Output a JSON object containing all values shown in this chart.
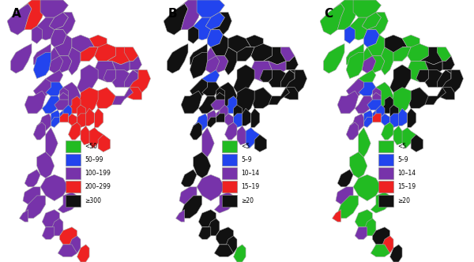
{
  "panel_labels": [
    "A",
    "B",
    "C"
  ],
  "legend_A_labels": [
    "<50",
    "50–99",
    "100–199",
    "200–299",
    "≥300"
  ],
  "legend_BC_labels": [
    "<5",
    "5–9",
    "10–14",
    "15–19",
    "≥20"
  ],
  "colors": [
    "#22bb22",
    "#2244ee",
    "#7733aa",
    "#ee2222",
    "#111111"
  ],
  "edge_color": "#aaaaaa",
  "bg_color": "#ffffff",
  "province_data_A": {
    "Mae Hong Son": 2,
    "Chiang Mai": 3,
    "Chiang Rai": 2,
    "Nan": 2,
    "Lampang": 2,
    "Lamphun": 2,
    "Phrae": 2,
    "Phayao": 2,
    "Tak": 2,
    "Uttaradit": 2,
    "Sukhothai": 2,
    "Phitsanulok": 2,
    "Loei": 2,
    "Nong Khai": 3,
    "Nong Bua Lam Phu": 3,
    "Udon Thani": 3,
    "Sakon Nakhon": 3,
    "Nakhon Phanom": 3,
    "Phetchabun": 2,
    "Khon Kaen": 2,
    "Kalasin": 2,
    "Mukdahan": 2,
    "Kamphaeng Phet": 1,
    "Nakhon Sawan": 2,
    "Maha Sarakham": 2,
    "Roi Et": 2,
    "Yasothon": 2,
    "Amnat Charoen": 2,
    "Ubon Ratchathani": 3,
    "Chai Nat": 1,
    "Uthai Thani": 2,
    "Sing Buri": 2,
    "Ang Thong": 2,
    "Lop Buri": 2,
    "Chaiyaphum": 2,
    "Nakhon Ratchasima": 3,
    "Buriram": 3,
    "Surin": 2,
    "Si Sa Ket": 3,
    "Suphan Buri": 1,
    "Ayutthaya": 2,
    "Saraburi": 3,
    "Pathum Thani": 1,
    "Nakhon Nayok": 3,
    "Prachin Buri": 3,
    "Sa Kaeo": 3,
    "Kanchanaburi": 2,
    "Ratchaburi": 2,
    "Nonthaburi": 1,
    "Bangkok": 3,
    "Samut Prakan": 3,
    "Chachoengsao": 3,
    "Samut Sakhon": 1,
    "Nakhon Pathom": 1,
    "Samut Songkhram": 1,
    "Chon Buri": 3,
    "Rayong": 3,
    "Chanthaburi": 3,
    "Trat": 3,
    "Phetchaburi": 2,
    "Prachuap Khiri Khan": 2,
    "Chumphon": 2,
    "Ranong": 2,
    "Surat Thani": 2,
    "Phang Nga": 2,
    "Phuket": 2,
    "Krabi": 2,
    "Nakhon Si Thammarat": 2,
    "Trang": 2,
    "Phatthalung": 2,
    "Satun": 2,
    "Songkhla": 3,
    "Pattani": 2,
    "Yala": 2,
    "Narathiwat": 3
  },
  "province_data_B": {
    "Mae Hong Son": 4,
    "Chiang Mai": 2,
    "Chiang Rai": 1,
    "Nan": 4,
    "Lampang": 1,
    "Lamphun": 4,
    "Phrae": 1,
    "Phayao": 1,
    "Tak": 4,
    "Uttaradit": 4,
    "Sukhothai": 4,
    "Phitsanulok": 2,
    "Loei": 4,
    "Nong Khai": 4,
    "Nong Bua Lam Phu": 4,
    "Udon Thani": 4,
    "Sakon Nakhon": 4,
    "Nakhon Phanom": 2,
    "Phetchabun": 4,
    "Khon Kaen": 2,
    "Kalasin": 2,
    "Mukdahan": 4,
    "Kamphaeng Phet": 4,
    "Nakhon Sawan": 1,
    "Maha Sarakham": 4,
    "Roi Et": 4,
    "Yasothon": 4,
    "Amnat Charoen": 4,
    "Ubon Ratchathani": 4,
    "Chai Nat": 4,
    "Uthai Thani": 4,
    "Sing Buri": 4,
    "Ang Thong": 4,
    "Lop Buri": 4,
    "Chaiyaphum": 4,
    "Nakhon Ratchasima": 4,
    "Buriram": 4,
    "Surin": 4,
    "Si Sa Ket": 4,
    "Suphan Buri": 4,
    "Ayutthaya": 2,
    "Saraburi": 1,
    "Pathum Thani": 2,
    "Nakhon Nayok": 4,
    "Prachin Buri": 4,
    "Sa Kaeo": 4,
    "Kanchanaburi": 4,
    "Ratchaburi": 1,
    "Nonthaburi": 2,
    "Bangkok": 4,
    "Samut Prakan": 2,
    "Chachoengsao": 1,
    "Samut Sakhon": 4,
    "Nakhon Pathom": 2,
    "Samut Songkhram": 4,
    "Chon Buri": 2,
    "Rayong": 2,
    "Chanthaburi": 1,
    "Trat": 4,
    "Phetchaburi": 4,
    "Prachuap Khiri Khan": 2,
    "Chumphon": 4,
    "Ranong": 4,
    "Surat Thani": 2,
    "Phang Nga": 2,
    "Phuket": 2,
    "Krabi": 4,
    "Nakhon Si Thammarat": 2,
    "Trang": 4,
    "Phatthalung": 4,
    "Satun": 4,
    "Songkhla": 4,
    "Pattani": 4,
    "Yala": 4,
    "Narathiwat": 0
  },
  "province_data_C": {
    "Mae Hong Son": 0,
    "Chiang Mai": 0,
    "Chiang Rai": 0,
    "Nan": 0,
    "Lampang": 0,
    "Lamphun": 1,
    "Phrae": 1,
    "Phayao": 0,
    "Tak": 0,
    "Uttaradit": 0,
    "Sukhothai": 0,
    "Phitsanulok": 0,
    "Loei": 4,
    "Nong Khai": 0,
    "Nong Bua Lam Phu": 0,
    "Udon Thani": 0,
    "Sakon Nakhon": 4,
    "Nakhon Phanom": 0,
    "Phetchabun": 0,
    "Khon Kaen": 0,
    "Kalasin": 4,
    "Mukdahan": 4,
    "Kamphaeng Phet": 0,
    "Nakhon Sawan": 0,
    "Maha Sarakham": 4,
    "Roi Et": 4,
    "Yasothon": 4,
    "Amnat Charoen": 4,
    "Ubon Ratchathani": 4,
    "Chai Nat": 1,
    "Uthai Thani": 2,
    "Sing Buri": 2,
    "Ang Thong": 2,
    "Lop Buri": 0,
    "Chaiyaphum": 4,
    "Nakhon Ratchasima": 0,
    "Buriram": 4,
    "Surin": 4,
    "Si Sa Ket": 4,
    "Suphan Buri": 2,
    "Ayutthaya": 1,
    "Saraburi": 4,
    "Pathum Thani": 1,
    "Nakhon Nayok": 4,
    "Prachin Buri": 1,
    "Sa Kaeo": 4,
    "Kanchanaburi": 2,
    "Ratchaburi": 2,
    "Nonthaburi": 1,
    "Bangkok": 3,
    "Samut Prakan": 1,
    "Chachoengsao": 1,
    "Samut Sakhon": 1,
    "Nakhon Pathom": 1,
    "Samut Songkhram": 2,
    "Chon Buri": 0,
    "Rayong": 0,
    "Chanthaburi": 0,
    "Trat": 4,
    "Phetchaburi": 2,
    "Prachuap Khiri Khan": 0,
    "Chumphon": 0,
    "Ranong": 4,
    "Surat Thani": 0,
    "Phang Nga": 2,
    "Phuket": 3,
    "Krabi": 0,
    "Nakhon Si Thammarat": 0,
    "Trang": 0,
    "Phatthalung": 0,
    "Satun": 2,
    "Songkhla": 4,
    "Pattani": 3,
    "Yala": 0,
    "Narathiwat": 4
  }
}
